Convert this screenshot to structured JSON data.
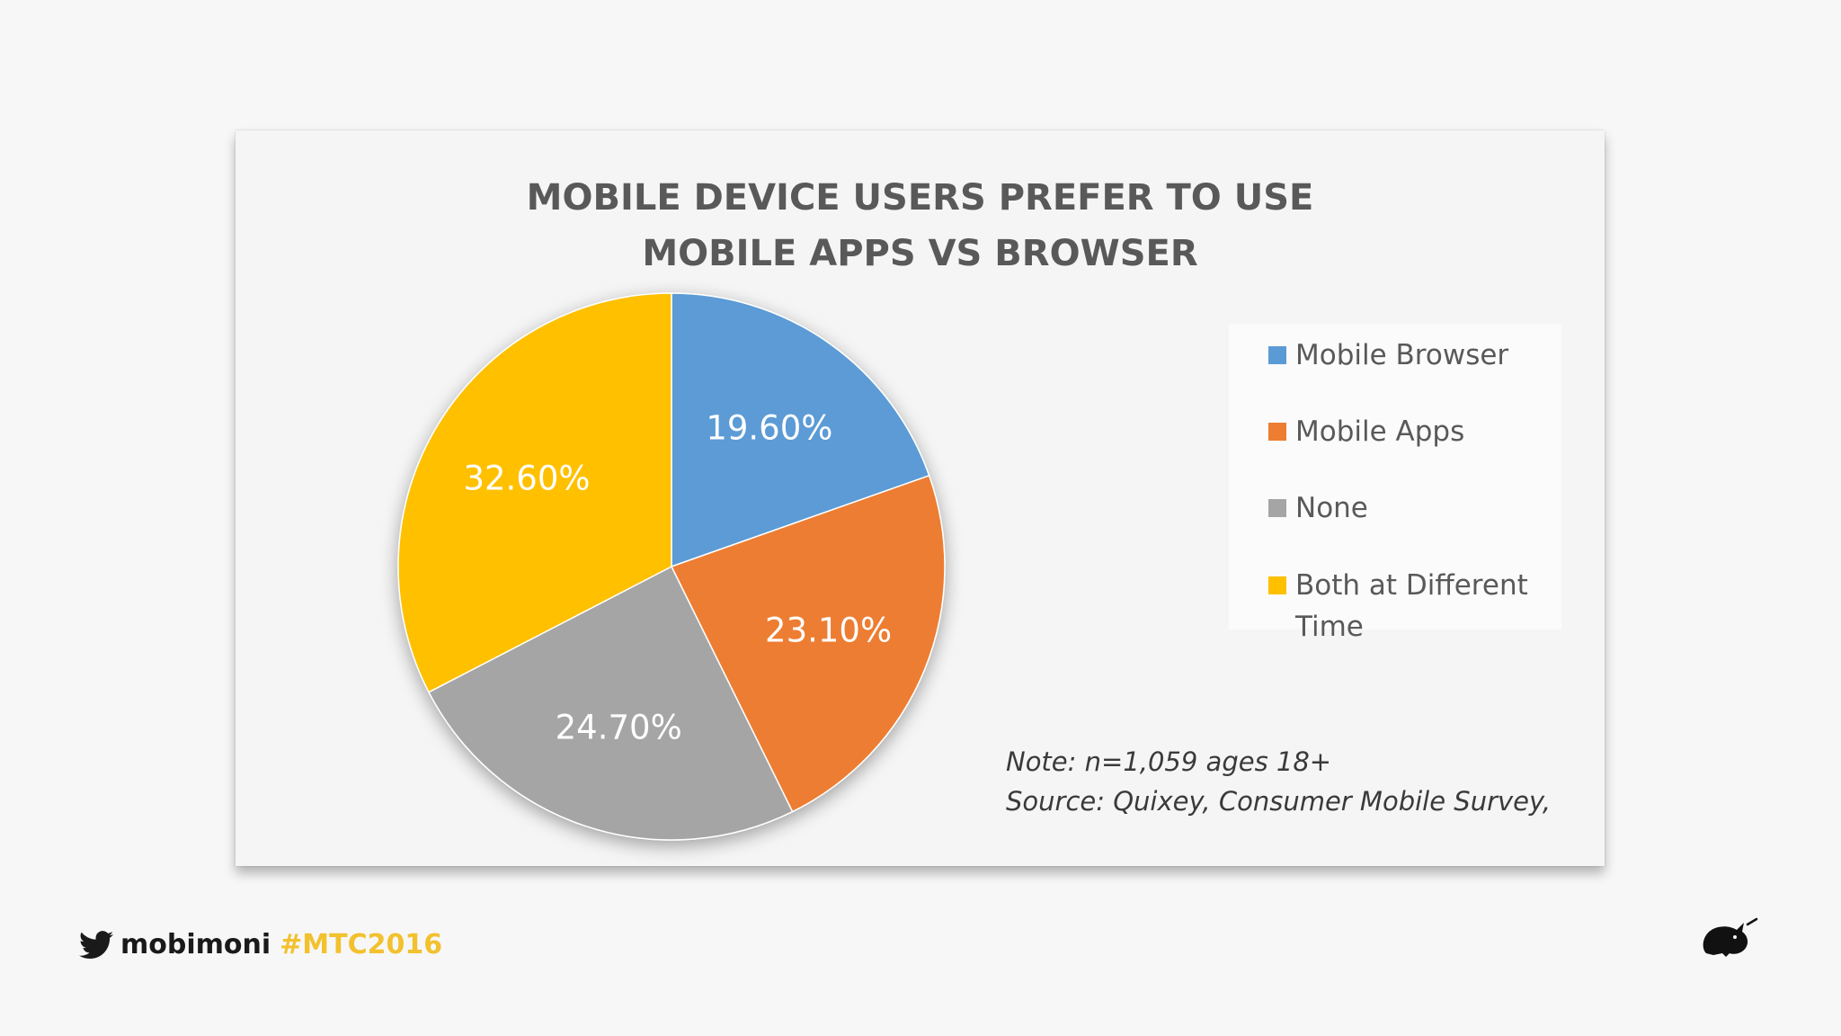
{
  "chart_data": {
    "type": "pie",
    "title_lines": [
      "MOBILE DEVICE USERS PREFER TO USE",
      "MOBILE APPS VS BROWSER"
    ],
    "slices": [
      {
        "label": "Mobile Browser",
        "value": 19.6,
        "display": "19.60%",
        "color": "#5b9bd5"
      },
      {
        "label": "Mobile Apps",
        "value": 23.1,
        "display": "23.10%",
        "color": "#ed7d31"
      },
      {
        "label": "None",
        "value": 24.7,
        "display": "24.70%",
        "color": "#a5a5a5"
      },
      {
        "label": "Both at Different Time",
        "value": 32.6,
        "display": "32.60%",
        "color": "#ffc000"
      }
    ],
    "legend_placement": "right"
  },
  "note": {
    "line1": "Note: n=1,059 ages 18+",
    "line2": "Source: Quixey, Consumer Mobile Survey,"
  },
  "footer": {
    "icon": "twitter-bird-icon",
    "handle": "mobimoni",
    "hashtag": "#MTC2016",
    "hashtag_color": "#f2c12e"
  },
  "logo": {
    "icon": "rhino-logo-icon"
  }
}
